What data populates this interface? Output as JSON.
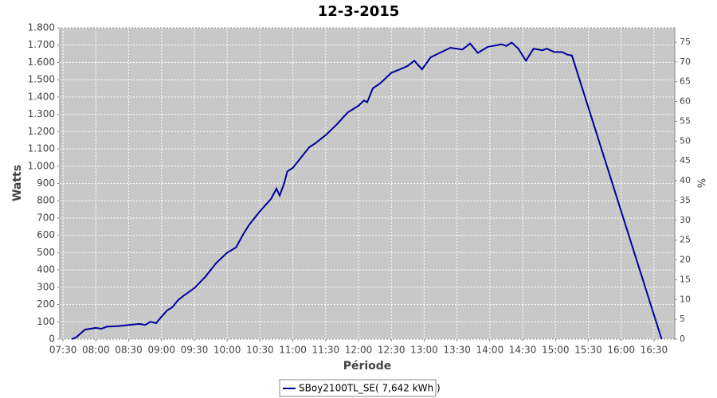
{
  "chart_data": {
    "type": "line",
    "title": "12-3-2015",
    "ylabel": "Watts",
    "y2label": "%",
    "xlabel": "Période",
    "x": [
      "07:38",
      "07:42",
      "07:50",
      "08:00",
      "08:05",
      "08:10",
      "08:20",
      "08:30",
      "08:40",
      "08:45",
      "08:50",
      "08:55",
      "09:00",
      "09:05",
      "09:10",
      "09:15",
      "09:20",
      "09:30",
      "09:40",
      "09:50",
      "10:00",
      "10:08",
      "10:15",
      "10:20",
      "10:30",
      "10:40",
      "10:45",
      "10:48",
      "10:52",
      "10:55",
      "11:00",
      "11:10",
      "11:15",
      "11:20",
      "11:30",
      "11:40",
      "11:50",
      "12:00",
      "12:05",
      "12:08",
      "12:13",
      "12:20",
      "12:30",
      "12:38",
      "12:45",
      "12:51",
      "12:58",
      "13:06",
      "13:24",
      "13:35",
      "13:42",
      "13:49",
      "13:58",
      "14:11",
      "14:15",
      "14:20",
      "14:26",
      "14:33",
      "14:40",
      "14:48",
      "14:52",
      "14:59",
      "15:06",
      "15:11",
      "15:15",
      "16:37"
    ],
    "series": [
      {
        "name": "SBoy2100TL_SE( 7,642 kWh )",
        "color": "#00009c",
        "values": [
          0,
          10,
          55,
          65,
          60,
          72,
          75,
          82,
          88,
          82,
          100,
          92,
          130,
          165,
          185,
          225,
          250,
          295,
          360,
          440,
          500,
          530,
          610,
          660,
          740,
          810,
          870,
          830,
          900,
          970,
          990,
          1070,
          1110,
          1130,
          1180,
          1240,
          1310,
          1350,
          1380,
          1370,
          1450,
          1480,
          1540,
          1560,
          1580,
          1610,
          1560,
          1630,
          1685,
          1675,
          1710,
          1655,
          1690,
          1705,
          1695,
          1715,
          1680,
          1610,
          1680,
          1670,
          1680,
          1660,
          1660,
          1645,
          1640,
          0
        ]
      }
    ],
    "xlim": [
      "07:27",
      "16:49"
    ],
    "xticks": [
      "07:30",
      "08:00",
      "08:30",
      "09:00",
      "09:30",
      "10:00",
      "10:30",
      "11:00",
      "11:30",
      "12:00",
      "12:30",
      "13:00",
      "13:30",
      "14:00",
      "14:30",
      "15:00",
      "15:30",
      "16:00",
      "16:30"
    ],
    "ylim": [
      0,
      1800
    ],
    "yticks": [
      0,
      100,
      200,
      300,
      400,
      500,
      600,
      700,
      800,
      900,
      {
        "value": 1000,
        "label": "1.000"
      },
      {
        "value": 1100,
        "label": "1.100"
      },
      {
        "value": 1200,
        "label": "1.200"
      },
      {
        "value": 1300,
        "label": "1.300"
      },
      {
        "value": 1400,
        "label": "1.400"
      },
      {
        "value": 1500,
        "label": "1.500"
      },
      {
        "value": 1600,
        "label": "1.600"
      },
      {
        "value": 1700,
        "label": "1.700"
      },
      {
        "value": 1800,
        "label": "1.800"
      }
    ],
    "y2lim": [
      0,
      78.6
    ],
    "y2ticks": [
      0,
      5,
      10,
      15,
      20,
      25,
      30,
      35,
      40,
      45,
      50,
      55,
      60,
      65,
      70,
      75
    ],
    "grid": true,
    "legend": "bottom"
  }
}
